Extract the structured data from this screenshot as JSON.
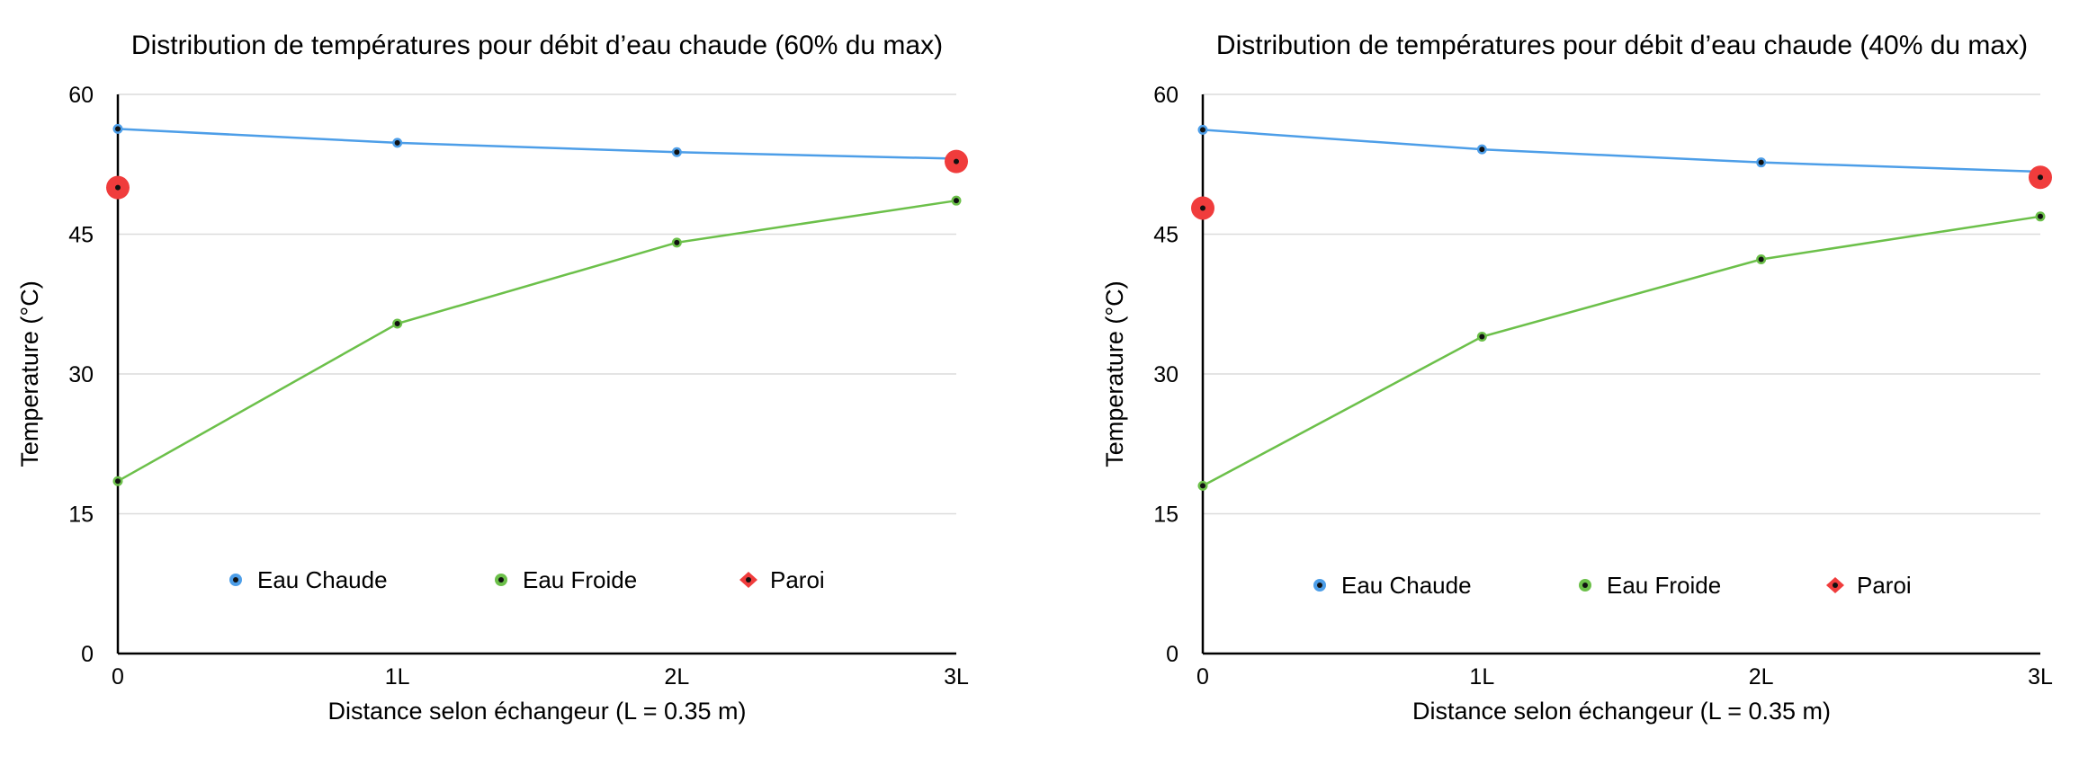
{
  "chart_data": [
    {
      "type": "line",
      "title": "Distribution de températures pour débit d’eau chaude (60% du max)",
      "xlabel": "Distance selon échangeur (L = 0.35 m)",
      "ylabel": "Temperature (°C)",
      "categories": [
        "0",
        "1L",
        "2L",
        "3L"
      ],
      "x": [
        0,
        1,
        2,
        3
      ],
      "ylim": [
        0,
        60
      ],
      "yticks": [
        "0",
        "15",
        "30",
        "45",
        "60"
      ],
      "grid": true,
      "legend_position": "bottom",
      "series": [
        {
          "name": "Eau Chaude",
          "color": "#4d9ee8",
          "x": [
            0,
            1,
            2,
            3
          ],
          "values": [
            56.3,
            54.8,
            53.8,
            53.1
          ]
        },
        {
          "name": "Eau Froide",
          "color": "#6cc04a",
          "x": [
            0,
            1,
            2,
            3
          ],
          "values": [
            18.5,
            35.4,
            44.1,
            48.6
          ]
        },
        {
          "name": "Paroi",
          "color": "#f03c3c",
          "x": [
            0,
            3
          ],
          "values": [
            50.0,
            52.8
          ],
          "style": "markers"
        }
      ]
    },
    {
      "type": "line",
      "title": "Distribution de températures pour débit d’eau chaude (40% du max)",
      "xlabel": "Distance selon échangeur (L = 0.35 m)",
      "ylabel": "Temperature (°C)",
      "categories": [
        "0",
        "1L",
        "2L",
        "3L"
      ],
      "x": [
        0,
        1,
        2,
        3
      ],
      "ylim": [
        0,
        60
      ],
      "yticks": [
        "0",
        "15",
        "30",
        "45",
        "60"
      ],
      "grid": true,
      "legend_position": "bottom",
      "series": [
        {
          "name": "Eau Chaude",
          "color": "#4d9ee8",
          "x": [
            0,
            1,
            2,
            3
          ],
          "values": [
            56.2,
            54.1,
            52.7,
            51.7
          ]
        },
        {
          "name": "Eau Froide",
          "color": "#6cc04a",
          "x": [
            0,
            1,
            2,
            3
          ],
          "values": [
            18.0,
            34.0,
            42.3,
            46.9
          ]
        },
        {
          "name": "Paroi",
          "color": "#f03c3c",
          "x": [
            0,
            3
          ],
          "values": [
            47.8,
            51.1
          ],
          "style": "markers"
        }
      ]
    }
  ]
}
